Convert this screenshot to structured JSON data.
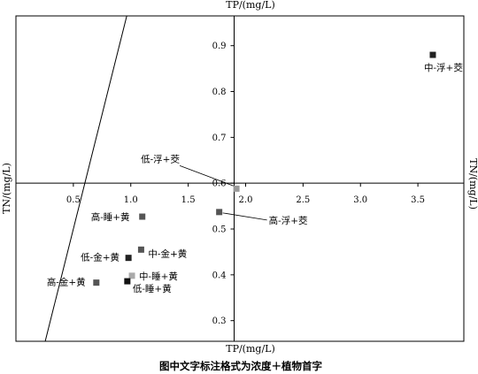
{
  "chart_data": {
    "type": "scatter",
    "top_axis_label": "TP/(mg/L)",
    "bottom_axis_label": "TP/(mg/L)",
    "left_axis_label": "TN/(mg/L)",
    "right_axis_label": "TN/(mg/L)",
    "caption": "图中文字标注格式为浓度＋植物首字",
    "x_ticks": [
      "0.5",
      "1.0",
      "1.5",
      "2.0",
      "2.5",
      "3.0",
      "3.5"
    ],
    "y_ticks": [
      "0.3",
      "0.4",
      "0.5",
      "0.6",
      "0.7",
      "0.8",
      "0.9"
    ],
    "xlim": [
      0.0,
      3.9
    ],
    "ylim": [
      0.255,
      0.965
    ],
    "axis_cross": {
      "x": 1.9,
      "y": 0.6
    },
    "grid": false,
    "reference_line": "1:1",
    "points": [
      {
        "label": "中-浮+茭",
        "x": 3.63,
        "y": 0.88,
        "color": "#222222"
      },
      {
        "label": "低-浮+茭",
        "x": 1.92,
        "y": 0.588,
        "color": "#9a9a9a"
      },
      {
        "label": "高-浮+茭",
        "x": 1.77,
        "y": 0.537,
        "color": "#555555"
      },
      {
        "label": "高-睡+黄",
        "x": 1.1,
        "y": 0.527,
        "color": "#555555"
      },
      {
        "label": "中-金+黄",
        "x": 1.09,
        "y": 0.455,
        "color": "#555555"
      },
      {
        "label": "低-金+黄",
        "x": 0.98,
        "y": 0.437,
        "color": "#222222"
      },
      {
        "label": "中-睡+黄",
        "x": 1.01,
        "y": 0.398,
        "color": "#aaaaaa"
      },
      {
        "label": "低-睡+黄",
        "x": 0.97,
        "y": 0.386,
        "color": "#111111"
      },
      {
        "label": "高-金+黄",
        "x": 0.7,
        "y": 0.383,
        "color": "#555555"
      }
    ]
  }
}
